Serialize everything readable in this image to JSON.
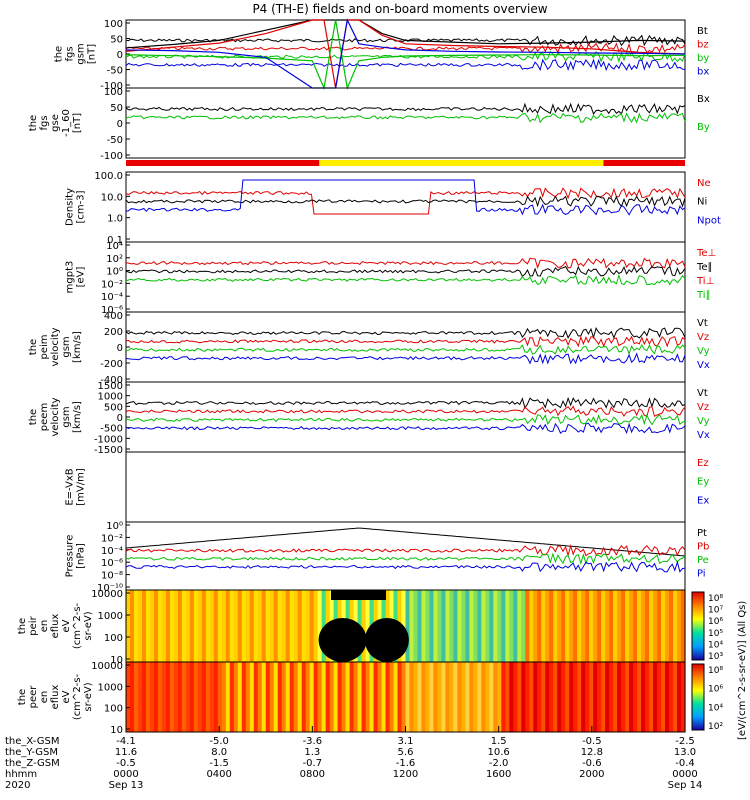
{
  "title": "P4 (TH-E) fields and on-board moments overview",
  "colors": {
    "black": "#000000",
    "red": "#e00000",
    "green": "#00c000",
    "blue": "#0000e0"
  },
  "panels": [
    {
      "id": "fgs-gsm",
      "ylabel": [
        "the",
        "fgs",
        "gsm",
        "[nT]"
      ],
      "ticks": [
        "100",
        "50",
        "0",
        "-50",
        "-100"
      ],
      "ylim": [
        -100,
        100
      ],
      "legend": [
        {
          "label": "Bt",
          "color": "black"
        },
        {
          "label": "bz",
          "color": "red"
        },
        {
          "label": "by",
          "color": "green"
        },
        {
          "label": "bx",
          "color": "blue"
        }
      ]
    },
    {
      "id": "fgs-gse",
      "ylabel": [
        "the",
        "fgs",
        "gse",
        "-1_60",
        "[nT]"
      ],
      "ticks": [
        "100",
        "50",
        "0",
        "-50",
        "-100"
      ],
      "ylim": [
        -120,
        100
      ],
      "legend": [
        {
          "label": "Bx",
          "color": "black"
        },
        {
          "label": "By",
          "color": "green"
        }
      ]
    },
    {
      "id": "density",
      "ylabel": [
        "Density",
        "[cm-3]"
      ],
      "ticks": [
        "100.0",
        "10.0",
        "1.0",
        "0.1"
      ],
      "ylim": [
        0.05,
        200
      ],
      "legend": [
        {
          "label": "Ne",
          "color": "red"
        },
        {
          "label": "Ni",
          "color": "black"
        },
        {
          "label": "Npot",
          "color": "blue"
        }
      ]
    },
    {
      "id": "mom-t",
      "ylabel": [
        "mgpt3",
        "[eV]"
      ],
      "ticks": [
        "10⁴",
        "10²",
        "10⁰",
        "10⁻²",
        "10⁻⁴",
        "10⁻⁶"
      ],
      "ylim": [
        1e-06,
        10000
      ],
      "legend": [
        {
          "label": "Te⊥",
          "color": "red"
        },
        {
          "label": "Te∥",
          "color": "black"
        },
        {
          "label": "Ti⊥",
          "color": "red"
        },
        {
          "label": "Ti∥",
          "color": "green"
        }
      ]
    },
    {
      "id": "peim-v",
      "ylabel": [
        "the",
        "peim",
        "velocity",
        "gsm",
        "[km/s]"
      ],
      "ticks": [
        "400",
        "200",
        "0",
        "-200",
        "-400"
      ],
      "ylim": [
        -400,
        400
      ],
      "legend": [
        {
          "label": "Vt",
          "color": "black"
        },
        {
          "label": "Vz",
          "color": "red"
        },
        {
          "label": "Vy",
          "color": "green"
        },
        {
          "label": "Vx",
          "color": "blue"
        }
      ]
    },
    {
      "id": "peem-v",
      "ylabel": [
        "the",
        "peem",
        "velocity",
        "gsm",
        "[km/s]"
      ],
      "ticks": [
        "1500",
        "1000",
        "500",
        "0",
        "-500",
        "-1000",
        "-1500"
      ],
      "ylim": [
        -1500,
        1500
      ],
      "legend": [
        {
          "label": "Vt",
          "color": "black"
        },
        {
          "label": "Vz",
          "color": "red"
        },
        {
          "label": "Vy",
          "color": "green"
        },
        {
          "label": "Vx",
          "color": "blue"
        }
      ]
    },
    {
      "id": "efield",
      "ylabel": [
        "E=-VxB",
        "[mV/m]"
      ],
      "ticks": [],
      "ylim": [
        0,
        1
      ],
      "legend": [
        {
          "label": "Ez",
          "color": "red"
        },
        {
          "label": "Ey",
          "color": "green"
        },
        {
          "label": "Ex",
          "color": "blue"
        }
      ]
    },
    {
      "id": "pressure",
      "ylabel": [
        "Pressure",
        "[nPa]"
      ],
      "ticks": [
        "10⁰",
        "10⁻²",
        "10⁻⁴",
        "10⁻⁶",
        "10⁻⁸",
        "10⁻¹⁰"
      ],
      "ylim": [
        1e-10,
        1
      ],
      "legend": [
        {
          "label": "Pt",
          "color": "black"
        },
        {
          "label": "Pb",
          "color": "red"
        },
        {
          "label": "Pe",
          "color": "green"
        },
        {
          "label": "Pi",
          "color": "blue"
        }
      ]
    },
    {
      "id": "peir-spec",
      "ylabel": [
        "the",
        "peir",
        "en",
        "eflux",
        "eV",
        "(cm^2-s-",
        "sr-eV)"
      ],
      "ticks": [
        "10000",
        "1000",
        "100",
        "10"
      ]
    },
    {
      "id": "peer-spec",
      "ylabel": [
        "the",
        "peer",
        "en",
        "eflux",
        "eV",
        "(cm^2-s-",
        "sr-eV)"
      ],
      "ticks": [
        "10000",
        "1000",
        "100",
        "10"
      ]
    }
  ],
  "colorbar": {
    "ticks1": [
      "10⁸",
      "10⁷",
      "10⁶",
      "10⁵",
      "10⁴",
      "10³"
    ],
    "ticks2": [
      "10⁸",
      "10⁶",
      "10⁴",
      "10²"
    ],
    "label": "[eV/(cm^2-s-sr-eV)] (All Qs)"
  },
  "xaxis": {
    "row_labels": [
      "the_X-GSM",
      "the_Y-GSM",
      "the_Z-GSM",
      "hhmm",
      "2020"
    ],
    "columns": [
      {
        "vals": [
          "-4.1",
          "11.6",
          "-0.5",
          "0000",
          "Sep 13"
        ]
      },
      {
        "vals": [
          "-5.0",
          "8.0",
          "-1.5",
          "0400",
          ""
        ]
      },
      {
        "vals": [
          "-3.6",
          "1.3",
          "-0.7",
          "0800",
          ""
        ]
      },
      {
        "vals": [
          "3.1",
          "5.6",
          "-1.6",
          "1200",
          ""
        ]
      },
      {
        "vals": [
          "1.5",
          "10.6",
          "-2.0",
          "1600",
          ""
        ]
      },
      {
        "vals": [
          "-0.5",
          "12.8",
          "-0.6",
          "2000",
          ""
        ]
      },
      {
        "vals": [
          "-2.5",
          "13.0",
          "-0.4",
          "0000",
          "Sep 14"
        ]
      }
    ]
  },
  "chart_data": {
    "type": "line",
    "x_hours": [
      0,
      2,
      4,
      6,
      8,
      8.5,
      9,
      9.5,
      10,
      11,
      12,
      14,
      16,
      18,
      20,
      22,
      24
    ],
    "series": [
      {
        "name": "Bt",
        "values": [
          18,
          28,
          40,
          70,
          100,
          100,
          100,
          100,
          100,
          60,
          40,
          35,
          30,
          32,
          35,
          40,
          38
        ]
      },
      {
        "name": "bz",
        "values": [
          8,
          20,
          32,
          60,
          100,
          100,
          -100,
          100,
          100,
          55,
          30,
          25,
          22,
          20,
          15,
          5,
          0
        ]
      },
      {
        "name": "by",
        "values": [
          -2,
          -5,
          -8,
          -12,
          -20,
          -100,
          100,
          -100,
          -20,
          -10,
          -6,
          -4,
          -3,
          -2,
          -3,
          -5,
          -4
        ]
      },
      {
        "name": "bx",
        "values": [
          12,
          10,
          5,
          -10,
          -100,
          -100,
          -100,
          100,
          30,
          20,
          12,
          8,
          6,
          5,
          3,
          2,
          0
        ]
      }
    ]
  }
}
